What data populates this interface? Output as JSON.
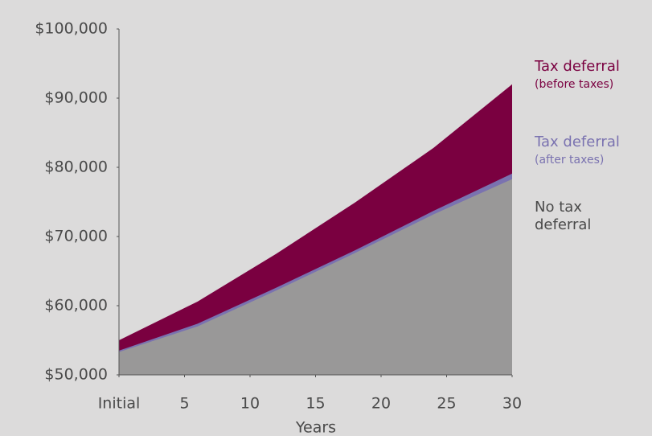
{
  "chart_data": {
    "type": "area",
    "x_label": "Years",
    "x": [
      0,
      6,
      12,
      18,
      24,
      30
    ],
    "xlim": [
      0,
      30
    ],
    "xticks": [
      {
        "value": 0,
        "label": "Initial"
      },
      5,
      10,
      15,
      20,
      25,
      30
    ],
    "ylim": [
      50000,
      100000
    ],
    "yticks": [
      {
        "value": 50000,
        "label": "$50,000"
      },
      {
        "value": 60000,
        "label": "$60,000"
      },
      {
        "value": 70000,
        "label": "$70,000"
      },
      {
        "value": 80000,
        "label": "$80,000"
      },
      {
        "value": 90000,
        "label": "$90,000"
      },
      {
        "value": 100000,
        "label": "$100,000"
      }
    ],
    "grid": false,
    "series": [
      {
        "name": "Tax deferral",
        "note": "(before taxes)",
        "color": "#7a0040",
        "values": [
          55000,
          60600,
          67500,
          74900,
          82800,
          92000
        ]
      },
      {
        "name": "Tax deferral",
        "note": "(after taxes)",
        "color": "#7a72b0",
        "values": [
          53500,
          57400,
          62600,
          68000,
          73700,
          79100
        ]
      },
      {
        "name": "No tax deferral",
        "color": "#999898",
        "values": [
          53300,
          57000,
          62200,
          67600,
          73200,
          78300
        ]
      }
    ]
  }
}
